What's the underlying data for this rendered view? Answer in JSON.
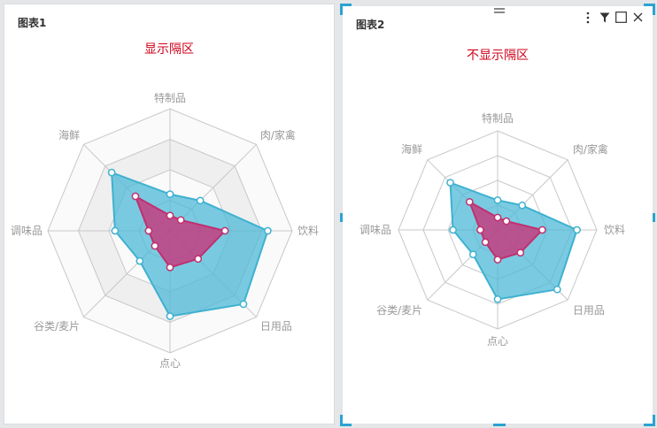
{
  "colors": {
    "series_outer": "#4dbad7",
    "series_inner": "#c8357a",
    "subtitle": "#d0021b",
    "grid": "#c8c8c8",
    "band": "#efefef"
  },
  "panel1": {
    "title": "图表1",
    "subtitle": "显示隔区"
  },
  "panel2": {
    "title": "图表2",
    "subtitle": "不显示隔区",
    "toolbar": [
      "more-icon",
      "filter-icon",
      "maximize-icon",
      "close-icon"
    ]
  },
  "chart_data": [
    {
      "type": "radar",
      "split_area": true,
      "categories": [
        "特制品",
        "肉/家禽",
        "饮料",
        "日用品",
        "点心",
        "谷类/麦片",
        "调味品",
        "海鲜"
      ],
      "max": 4,
      "series": [
        {
          "values": [
            1.2,
            1.4,
            3.2,
            3.4,
            2.8,
            1.4,
            1.8,
            2.7
          ]
        },
        {
          "values": [
            0.5,
            0.5,
            1.8,
            1.3,
            1.2,
            0.7,
            0.7,
            1.6
          ]
        }
      ]
    },
    {
      "type": "radar",
      "split_area": false,
      "categories": [
        "特制品",
        "肉/家禽",
        "饮料",
        "日用品",
        "点心",
        "谷类/麦片",
        "调味品",
        "海鲜"
      ],
      "max": 4,
      "series": [
        {
          "values": [
            1.2,
            1.4,
            3.2,
            3.4,
            2.8,
            1.4,
            1.8,
            2.7
          ]
        },
        {
          "values": [
            0.5,
            0.5,
            1.8,
            1.3,
            1.2,
            0.7,
            0.7,
            1.6
          ]
        }
      ]
    }
  ]
}
